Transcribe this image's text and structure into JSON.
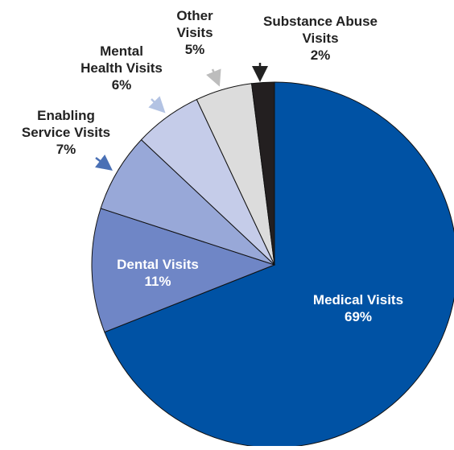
{
  "chart_data": {
    "type": "pie",
    "title": "",
    "slices": [
      {
        "label": "Medical Visits",
        "value": 69,
        "value_label": "69%",
        "color": "#0052A4"
      },
      {
        "label": "Dental Visits",
        "value": 11,
        "value_label": "11%",
        "color": "#6F86C6"
      },
      {
        "label": "Enabling Service Visits",
        "value": 7,
        "value_label": "7%",
        "color": "#98A8D8"
      },
      {
        "label": "Mental Health Visits",
        "value": 6,
        "value_label": "6%",
        "color": "#C5CCE9"
      },
      {
        "label": "Other Visits",
        "value": 5,
        "value_label": "5%",
        "color": "#DCDCDC"
      },
      {
        "label": "Substance Abuse Visits",
        "value": 2,
        "value_label": "2%",
        "color": "#231F20"
      }
    ],
    "start": "12 o'clock",
    "direction": "clockwise",
    "legend": "none",
    "labels": [
      {
        "lines": [
          "Medical Visits",
          "69%"
        ]
      },
      {
        "lines": [
          "Dental Visits",
          "11%"
        ]
      },
      {
        "lines": [
          "Enabling",
          "Service Visits",
          "7%"
        ]
      },
      {
        "lines": [
          "Mental",
          "Health Visits",
          "6%"
        ]
      },
      {
        "lines": [
          "Other",
          "Visits",
          "5%"
        ]
      },
      {
        "lines": [
          "Substance Abuse",
          "Visits",
          "2%"
        ]
      }
    ]
  }
}
